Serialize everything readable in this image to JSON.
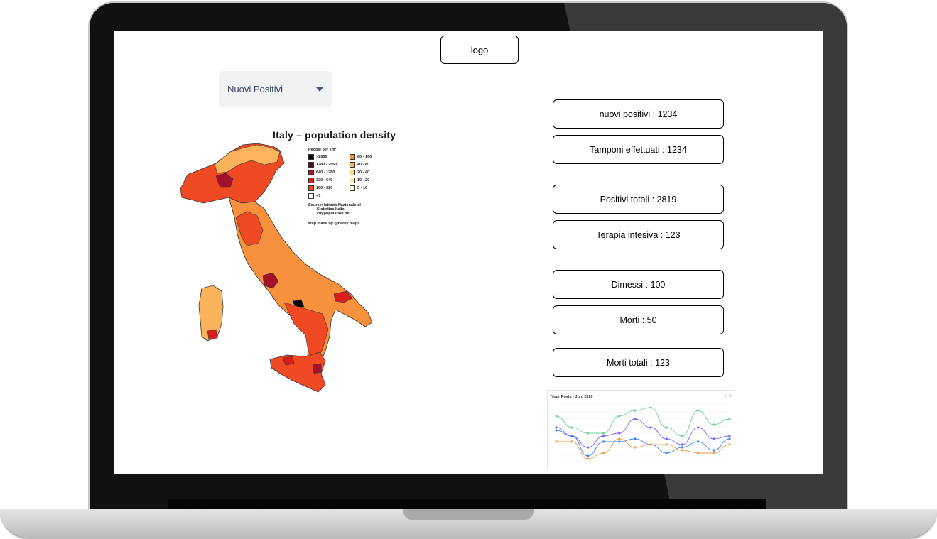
{
  "header": {
    "logo_label": "logo"
  },
  "filter": {
    "selected": "Nuovi Positivi"
  },
  "stats": [
    "nuovi positivi : 1234",
    "Tamponi effettuati : 1234",
    "Positivi totali : 2819",
    "Terapia intesiva : 123",
    "Dimessi : 100",
    "Morti : 50",
    "Morti totali : 123"
  ],
  "map": {
    "title": "Italy – population density",
    "legend_title": "People per km²",
    "legend": [
      {
        "label": ">2560",
        "color": "#000000"
      },
      {
        "label": "80 - 160",
        "color": "#f7913d"
      },
      {
        "label": "1280 - 2560",
        "color": "#5a0a1e"
      },
      {
        "label": "40 - 80",
        "color": "#fbb35c"
      },
      {
        "label": "640 - 1280",
        "color": "#a4112a"
      },
      {
        "label": "20 - 40",
        "color": "#fdd486"
      },
      {
        "label": "320 - 640",
        "color": "#d81d1d"
      },
      {
        "label": "10 - 20",
        "color": "#fee7b2"
      },
      {
        "label": "160 - 320",
        "color": "#f04a25"
      },
      {
        "label": "5 - 10",
        "color": "#fff4d8"
      },
      {
        "label": "<5",
        "color": "#ffffff"
      }
    ],
    "source_line1": "Source: Istituto Nazionale di",
    "source_line2": "Statistica Italia",
    "source_line3": "citypopulation.de",
    "credit": "Map made by @nerdy.maps"
  },
  "chart": {
    "title": "Your Posts - Jun, 2020",
    "nav": [
      "‹",
      "›",
      "»"
    ],
    "chart_data": {
      "type": "line",
      "title": "Your Posts - Jun, 2020",
      "series": [
        {
          "name": "",
          "color": "#6fcf97",
          "values": [
            80,
            60,
            50,
            50,
            80,
            90,
            95,
            60,
            45,
            90,
            65,
            75
          ]
        },
        {
          "name": "",
          "color": "#7b61ff",
          "values": [
            60,
            45,
            25,
            45,
            50,
            75,
            60,
            40,
            30,
            60,
            40,
            45
          ]
        },
        {
          "name": "",
          "color": "#3b82f6",
          "values": [
            55,
            45,
            10,
            35,
            35,
            40,
            30,
            15,
            25,
            35,
            20,
            40
          ]
        },
        {
          "name": "",
          "color": "#f2994a",
          "values": [
            35,
            35,
            5,
            15,
            40,
            25,
            30,
            30,
            20,
            15,
            15,
            30
          ]
        }
      ],
      "ylim": [
        0,
        100
      ]
    }
  }
}
